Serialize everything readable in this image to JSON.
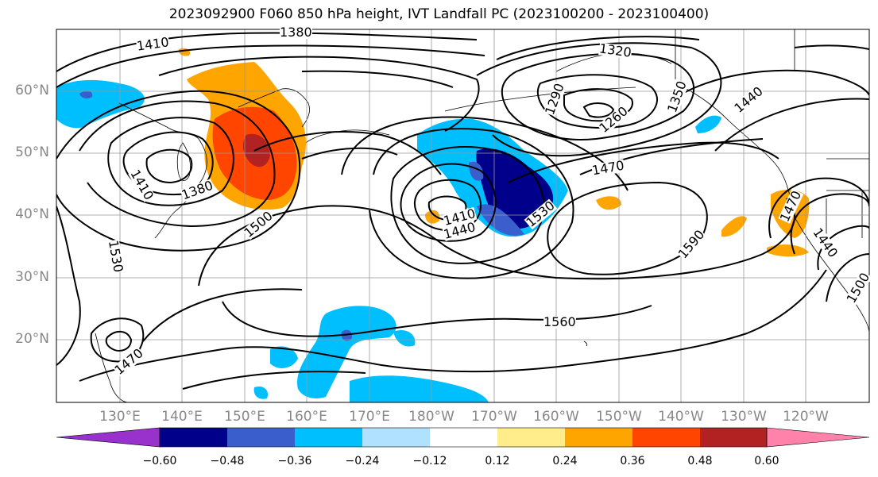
{
  "title": "2023092900 F060 850 hPa height, IVT Landfall PC (2023100200 - 2023100400)",
  "lat_labels": [
    "60°N",
    "50°N",
    "40°N",
    "30°N",
    "20°N"
  ],
  "lon_labels": [
    "130°E",
    "140°E",
    "150°E",
    "160°E",
    "170°E",
    "180°W",
    "170°W",
    "160°W",
    "150°W",
    "140°W",
    "130°W",
    "120°W"
  ],
  "contour_labels": [
    "1410",
    "1380",
    "1320",
    "1290",
    "1260",
    "1350",
    "1440",
    "1410",
    "1380",
    "1500",
    "1470",
    "1410",
    "1440",
    "1530",
    "1590",
    "1470",
    "1440",
    "1500",
    "1560",
    "1470",
    "1530"
  ],
  "colorbar": {
    "colors": [
      "#9932cc",
      "#00008b",
      "#3a5fcd",
      "#00bfff",
      "#b0e2ff",
      "#ffffff",
      "#ffec8b",
      "#ffa500",
      "#ff4500",
      "#b22222",
      "#ff82ab"
    ],
    "tick_labels": [
      "−0.60",
      "−0.48",
      "−0.36",
      "−0.24",
      "−0.12",
      "0.12",
      "0.24",
      "0.36",
      "0.48",
      "0.60"
    ]
  }
}
